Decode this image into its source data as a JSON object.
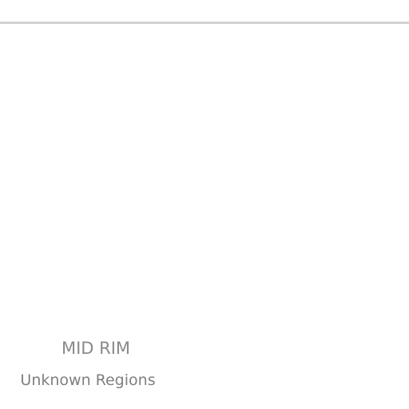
{
  "region": {
    "title": "MID RIM",
    "subtitle": "Unknown Regions"
  },
  "colors": {
    "background": "#ffffff",
    "divider": "#d2d2d2",
    "title_text": "#8a8a8a",
    "subtitle_text": "#808080"
  }
}
